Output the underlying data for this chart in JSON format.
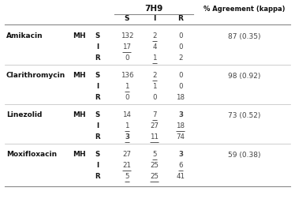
{
  "title_7h9": "7H9",
  "title_agreement": "% Agreement (kappa)",
  "col_headers": [
    "S",
    "I",
    "R"
  ],
  "drugs": [
    "Amikacin",
    "Clarithromycin",
    "Linezolid",
    "Moxifloxacin"
  ],
  "medium": "MH",
  "agreements": [
    "87 (0.35)",
    "98 (0.92)",
    "73 (0.52)",
    "59 (0.38)"
  ],
  "cell_data": {
    "Amikacin": {
      "S": {
        "S": {
          "val": "132",
          "ul": false,
          "bold": false
        },
        "I": {
          "val": "2",
          "ul": true,
          "bold": false
        },
        "R": {
          "val": "0",
          "ul": false,
          "bold": false
        }
      },
      "I": {
        "S": {
          "val": "17",
          "ul": true,
          "bold": false
        },
        "I": {
          "val": "4",
          "ul": false,
          "bold": false
        },
        "R": {
          "val": "0",
          "ul": false,
          "bold": false
        }
      },
      "R": {
        "S": {
          "val": "0",
          "ul": false,
          "bold": false
        },
        "I": {
          "val": "1",
          "ul": true,
          "bold": false
        },
        "R": {
          "val": "2",
          "ul": false,
          "bold": false
        }
      }
    },
    "Clarithromycin": {
      "S": {
        "S": {
          "val": "136",
          "ul": false,
          "bold": false
        },
        "I": {
          "val": "2",
          "ul": true,
          "bold": false
        },
        "R": {
          "val": "0",
          "ul": false,
          "bold": false
        }
      },
      "I": {
        "S": {
          "val": "1",
          "ul": true,
          "bold": false
        },
        "I": {
          "val": "1",
          "ul": false,
          "bold": false
        },
        "R": {
          "val": "0",
          "ul": false,
          "bold": false
        }
      },
      "R": {
        "S": {
          "val": "0",
          "ul": false,
          "bold": false
        },
        "I": {
          "val": "0",
          "ul": false,
          "bold": false
        },
        "R": {
          "val": "18",
          "ul": false,
          "bold": false
        }
      }
    },
    "Linezolid": {
      "S": {
        "S": {
          "val": "14",
          "ul": false,
          "bold": false
        },
        "I": {
          "val": "7",
          "ul": true,
          "bold": false
        },
        "R": {
          "val": "3",
          "ul": false,
          "bold": true
        }
      },
      "I": {
        "S": {
          "val": "1",
          "ul": true,
          "bold": false
        },
        "I": {
          "val": "27",
          "ul": false,
          "bold": false
        },
        "R": {
          "val": "18",
          "ul": true,
          "bold": false
        }
      },
      "R": {
        "S": {
          "val": "3",
          "ul": true,
          "bold": true
        },
        "I": {
          "val": "11",
          "ul": true,
          "bold": false
        },
        "R": {
          "val": "74",
          "ul": false,
          "bold": false
        }
      }
    },
    "Moxifloxacin": {
      "S": {
        "S": {
          "val": "27",
          "ul": false,
          "bold": false
        },
        "I": {
          "val": "5",
          "ul": true,
          "bold": false
        },
        "R": {
          "val": "3",
          "ul": false,
          "bold": true
        }
      },
      "I": {
        "S": {
          "val": "21",
          "ul": true,
          "bold": false
        },
        "I": {
          "val": "25",
          "ul": false,
          "bold": false
        },
        "R": {
          "val": "6",
          "ul": true,
          "bold": false
        }
      },
      "R": {
        "S": {
          "val": "5",
          "ul": true,
          "bold": false
        },
        "I": {
          "val": "25",
          "ul": true,
          "bold": false
        },
        "R": {
          "val": "41",
          "ul": false,
          "bold": false
        }
      }
    }
  },
  "bg_color": "#ffffff",
  "text_color": "#444444",
  "bold_color": "#111111",
  "line_color": "#888888",
  "sep_color": "#bbbbbb"
}
